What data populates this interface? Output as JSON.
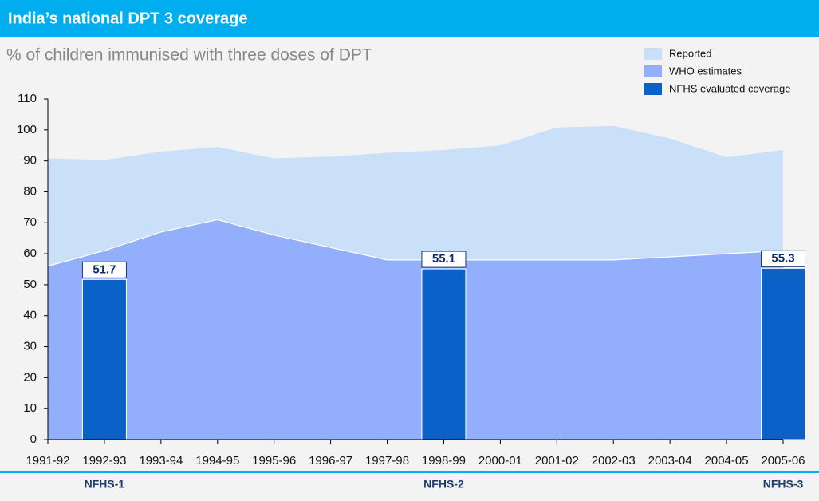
{
  "chart_data": {
    "type": "area",
    "title": "India’s national DPT 3 coverage",
    "subtitle": "% of children immunised with three doses of DPT",
    "categories": [
      "1991-92",
      "1992-93",
      "1993-94",
      "1994-95",
      "1995-96",
      "1996-97",
      "1997-98",
      "1998-99",
      "2000-01",
      "2001-02",
      "2002-03",
      "2003-04",
      "2004-05",
      "2005-06"
    ],
    "series": [
      {
        "name": "Reported",
        "color": "#c9e0f8",
        "values": [
          90.8,
          90.3,
          93,
          94.5,
          90.8,
          91.4,
          92.6,
          93.5,
          95,
          100.8,
          101.3,
          97.2,
          91.2,
          93.5
        ]
      },
      {
        "name": "WHO estimates",
        "color": "#93aefa",
        "values": [
          56,
          61,
          67,
          71,
          66,
          62,
          58,
          58,
          58,
          58,
          58,
          59,
          60,
          61
        ]
      },
      {
        "name": "NFHS evaluated coverage",
        "color": "#0a62c8",
        "values": [
          null,
          51.7,
          null,
          null,
          null,
          null,
          null,
          55.1,
          null,
          null,
          null,
          null,
          null,
          55.3
        ]
      }
    ],
    "survey_labels": [
      "NFHS-1",
      "NFHS-2",
      "NFHS-3"
    ],
    "ylim": [
      0,
      110
    ],
    "yticks": [
      0,
      10,
      20,
      30,
      40,
      50,
      60,
      70,
      80,
      90,
      100,
      110
    ]
  }
}
